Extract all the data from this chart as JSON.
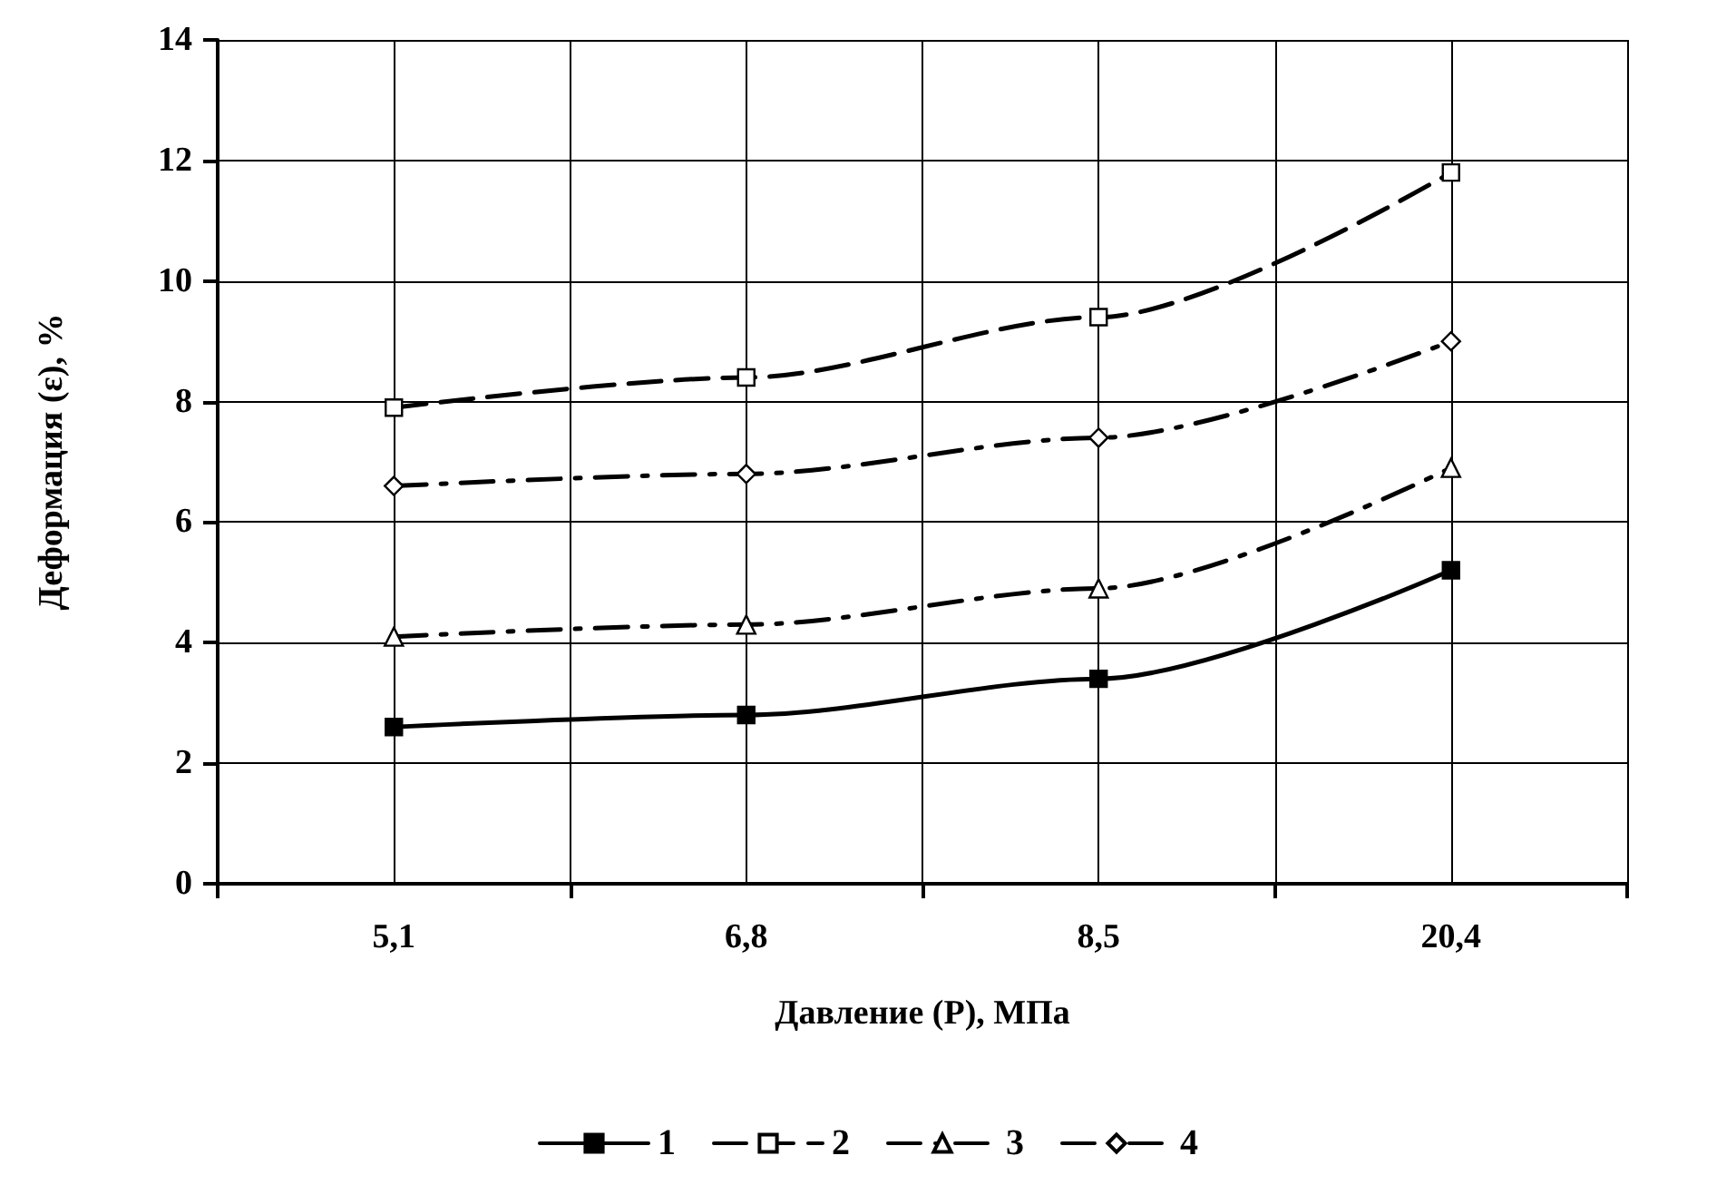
{
  "chart_data": {
    "type": "line",
    "xlabel": "Давление (P), МПа",
    "ylabel": "Деформация (ε), %",
    "categories": [
      "5,1",
      "6,8",
      "8,5",
      "20,4"
    ],
    "series": [
      {
        "name": "1",
        "color": "#000000",
        "marker": "square",
        "line_style": "solid",
        "values": [
          2.6,
          2.8,
          3.4,
          5.2
        ]
      },
      {
        "name": "2",
        "color": "#000000",
        "marker": "square",
        "line_style": "dashed",
        "values": [
          7.9,
          8.4,
          9.4,
          11.8
        ]
      },
      {
        "name": "3",
        "color": "#000000",
        "marker": "triangle",
        "line_style": "dashdot",
        "values": [
          4.1,
          4.3,
          4.9,
          6.9
        ]
      },
      {
        "name": "4",
        "color": "#000000",
        "marker": "diamond",
        "line_style": "dashdot",
        "values": [
          6.6,
          6.8,
          7.4,
          9.0
        ]
      }
    ],
    "ylim": [
      0,
      14
    ],
    "yticks": [
      0,
      2,
      4,
      6,
      8,
      10,
      12,
      14
    ],
    "grid": true,
    "legend": "bottom"
  }
}
